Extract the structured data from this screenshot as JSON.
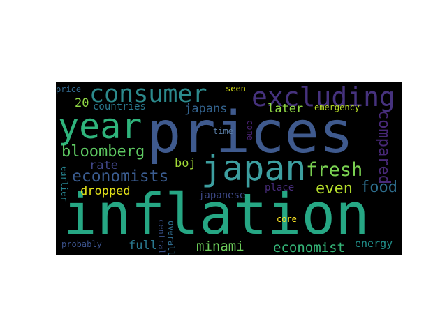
{
  "words": {
    "inflation": {
      "text": "inflation",
      "color": "#26a784"
    },
    "prices": {
      "text": "prices",
      "color": "#3f5a8e"
    },
    "year": {
      "text": "year",
      "color": "#2fb47c"
    },
    "japan": {
      "text": "japan",
      "color": "#3d9fa0"
    },
    "excluding": {
      "text": "excluding",
      "color": "#46327e"
    },
    "consumer": {
      "text": "consumer",
      "color": "#2c8a8c"
    },
    "economists": {
      "text": "economists",
      "color": "#3b5d91"
    },
    "fresh": {
      "text": "fresh",
      "color": "#7ad151"
    },
    "bloomberg": {
      "text": "bloomberg",
      "color": "#5ec962"
    },
    "food": {
      "text": "food",
      "color": "#2e6e8e"
    },
    "even": {
      "text": "even",
      "color": "#b5de2b"
    },
    "compared": {
      "text": "compared",
      "color": "#482878"
    },
    "economist": {
      "text": "economist",
      "color": "#35b779"
    },
    "minami": {
      "text": "minami",
      "color": "#6ccd5a"
    },
    "rate": {
      "text": "rate",
      "color": "#404688"
    },
    "boj": {
      "text": "boj",
      "color": "#a2da37"
    },
    "dropped": {
      "text": "dropped",
      "color": "#e5e419"
    },
    "later": {
      "text": "later",
      "color": "#8fd744"
    },
    "japans": {
      "text": "japans",
      "color": "#33628d"
    },
    "countries": {
      "text": "countries",
      "color": "#2a788e"
    },
    "twenty": {
      "text": "20",
      "color": "#8fd744"
    },
    "full": {
      "text": "full",
      "color": "#2a788e"
    },
    "energy": {
      "text": "energy",
      "color": "#21918c"
    },
    "japanese": {
      "text": "japanese",
      "color": "#3e4a89"
    },
    "place": {
      "text": "place",
      "color": "#472c7a"
    },
    "core": {
      "text": "core",
      "color": "#fde725"
    },
    "central": {
      "text": "central",
      "color": "#3b528b"
    },
    "overall": {
      "text": "overall",
      "color": "#2f6c8e"
    },
    "probably": {
      "text": "probably",
      "color": "#3b528b"
    },
    "price": {
      "text": "price",
      "color": "#31688e"
    },
    "seen": {
      "text": "seen",
      "color": "#dae319"
    },
    "emergency": {
      "text": "emergency",
      "color": "#b8de29"
    },
    "time": {
      "text": "time",
      "color": "#5b7fa8"
    },
    "come": {
      "text": "come",
      "color": "#482173"
    },
    "earlier": {
      "text": "earlier",
      "color": "#26828e"
    }
  }
}
